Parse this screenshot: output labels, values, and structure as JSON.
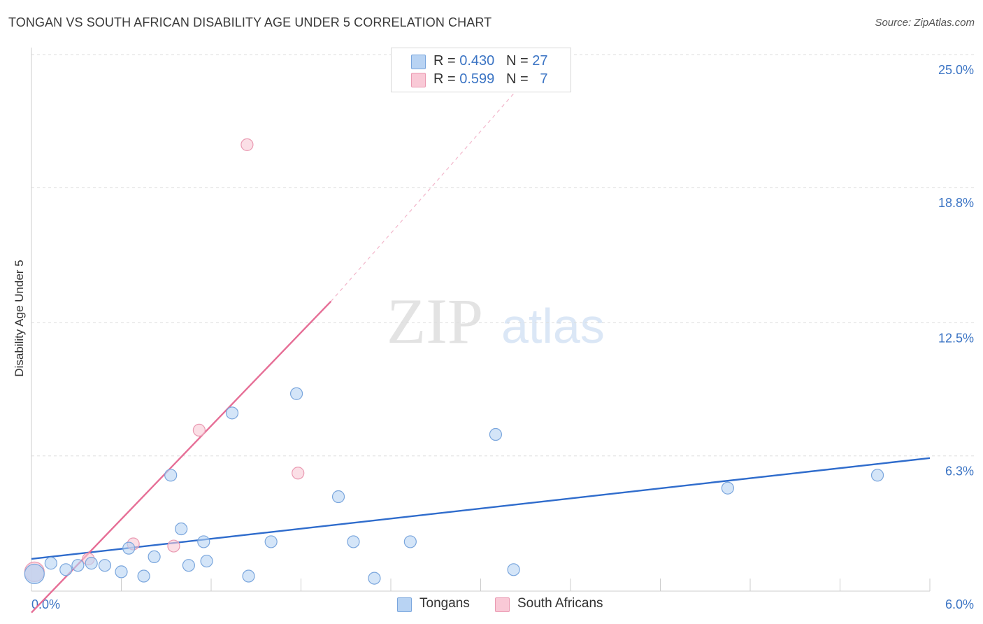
{
  "header": {
    "title": "TONGAN VS SOUTH AFRICAN DISABILITY AGE UNDER 5 CORRELATION CHART",
    "source": "Source: ZipAtlas.com"
  },
  "watermark": {
    "zip": "ZIP",
    "atlas": "atlas"
  },
  "colors": {
    "tongan_fill": "#b8d3f3",
    "tongan_stroke": "#7aa6dd",
    "tongan_line": "#2f6ccc",
    "sa_fill": "#f9c9d6",
    "sa_stroke": "#ea9ab2",
    "sa_line": "#e66e96",
    "grid": "#dcdcdc",
    "axis_text": "#3b74c4"
  },
  "legend": {
    "r_label": "R =",
    "n_label": "N =",
    "items": [
      {
        "r": "0.430",
        "n": "27"
      },
      {
        "r": "0.599",
        "n": "7"
      }
    ]
  },
  "chart_data": {
    "type": "scatter",
    "title": "TONGAN VS SOUTH AFRICAN DISABILITY AGE UNDER 5 CORRELATION CHART",
    "xlabel": "",
    "ylabel": "Disability Age Under 5",
    "xlim": [
      0,
      6.0
    ],
    "ylim": [
      0,
      25.0
    ],
    "x_tick_labels": [
      "0.0%",
      "6.0%"
    ],
    "y_ticks": [
      6.3,
      12.5,
      18.8,
      25.0
    ],
    "y_tick_labels": [
      "6.3%",
      "12.5%",
      "18.8%",
      "25.0%"
    ],
    "grid": true,
    "legend_position": "top-center",
    "series": [
      {
        "name": "Tongans",
        "r": 0.43,
        "n": 27,
        "points": [
          [
            0.02,
            0.8
          ],
          [
            0.13,
            1.3
          ],
          [
            0.23,
            1.0
          ],
          [
            0.31,
            1.2
          ],
          [
            0.4,
            1.3
          ],
          [
            0.49,
            1.2
          ],
          [
            0.6,
            0.9
          ],
          [
            0.65,
            2.0
          ],
          [
            0.75,
            0.7
          ],
          [
            0.82,
            1.6
          ],
          [
            0.93,
            5.4
          ],
          [
            1.0,
            2.9
          ],
          [
            1.05,
            1.2
          ],
          [
            1.15,
            2.3
          ],
          [
            1.17,
            1.4
          ],
          [
            1.34,
            8.3
          ],
          [
            1.45,
            0.7
          ],
          [
            1.6,
            2.3
          ],
          [
            1.77,
            9.2
          ],
          [
            2.05,
            4.4
          ],
          [
            2.15,
            2.3
          ],
          [
            2.29,
            0.6
          ],
          [
            2.53,
            2.3
          ],
          [
            3.1,
            7.3
          ],
          [
            3.22,
            1.0
          ],
          [
            4.65,
            4.8
          ],
          [
            5.65,
            5.4
          ]
        ],
        "trend": {
          "x": [
            0.0,
            6.0
          ],
          "y": [
            1.5,
            6.2
          ]
        }
      },
      {
        "name": "South Africans",
        "r": 0.599,
        "n": 7,
        "points": [
          [
            0.02,
            0.9
          ],
          [
            0.38,
            1.5
          ],
          [
            0.68,
            2.2
          ],
          [
            0.95,
            2.1
          ],
          [
            1.12,
            7.5
          ],
          [
            1.44,
            20.8
          ],
          [
            1.78,
            5.5
          ]
        ],
        "trend": {
          "x": [
            0.0,
            2.0
          ],
          "y": [
            -1.0,
            13.5
          ]
        },
        "trend_extension": {
          "x": [
            2.0,
            3.45
          ],
          "y": [
            13.5,
            25.0
          ]
        }
      }
    ]
  }
}
